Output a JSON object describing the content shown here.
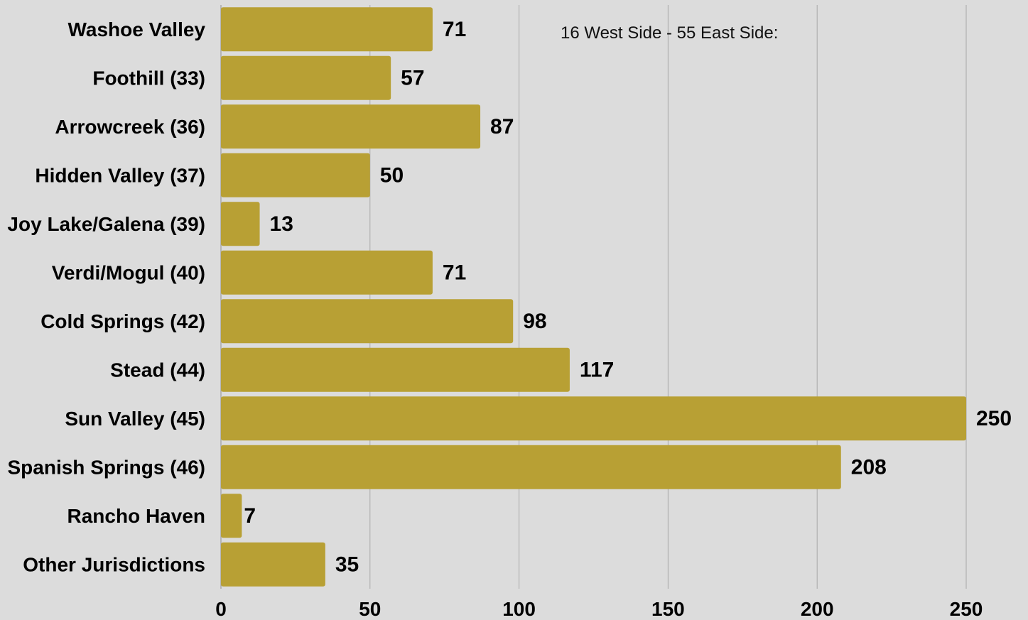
{
  "chart_data": {
    "type": "bar",
    "orientation": "horizontal",
    "categories": [
      "Washoe Valley",
      "Foothill (33)",
      "Arrowcreek (36)",
      "Hidden Valley (37)",
      "Joy Lake/Galena (39)",
      "Verdi/Mogul (40)",
      "Cold Springs (42)",
      "Stead (44)",
      "Sun Valley (45)",
      "Spanish Springs (46)",
      "Rancho Haven",
      "Other Jurisdictions"
    ],
    "values": [
      71,
      57,
      87,
      50,
      13,
      71,
      98,
      117,
      250,
      208,
      7,
      35
    ],
    "xlim": [
      0,
      250
    ],
    "xticks": [
      "0",
      "50",
      "100",
      "150",
      "200",
      "250"
    ],
    "annotation": "16 West Side - 55 East Side:",
    "grid": true,
    "bar_color": "#b8a034",
    "background_color": "#dcdcdc",
    "grid_color": "#a9a9a9"
  }
}
